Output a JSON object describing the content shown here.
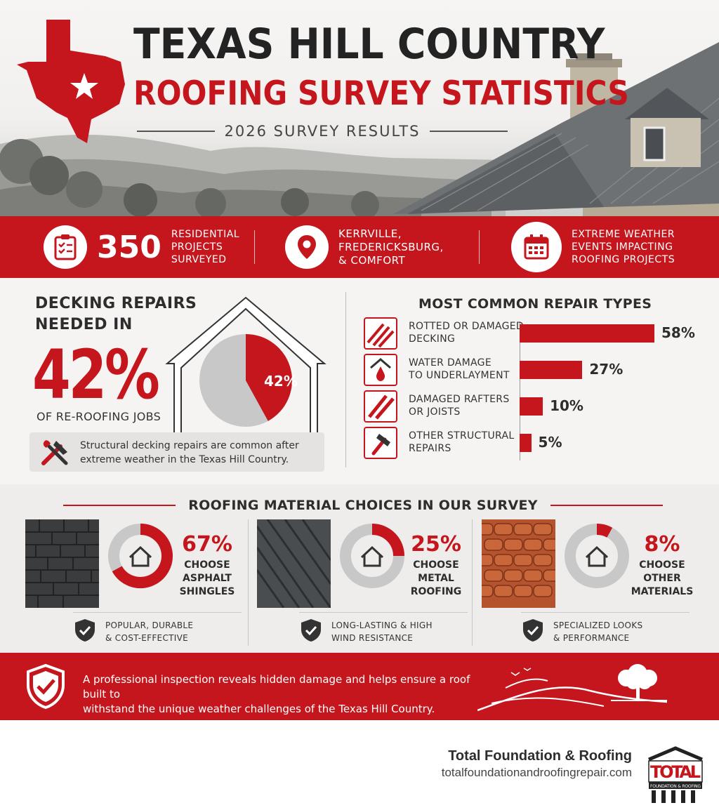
{
  "header": {
    "title_line1": "TEXAS HILL COUNTRY",
    "title_line2": "ROOFING SURVEY STATISTICS",
    "subtitle": "2026 SURVEY RESULTS"
  },
  "stats_bar": {
    "projects_count": "350",
    "projects_label_1": "RESIDENTIAL",
    "projects_label_2": "PROJECTS",
    "projects_label_3": "SURVEYED",
    "locations_1": "KERRVILLE,",
    "locations_2": "FREDERICKSBURG,",
    "locations_3": "& COMFORT",
    "weather_1": "EXTREME WEATHER",
    "weather_2": "EVENTS IMPACTING",
    "weather_3": "ROOFING PROJECTS"
  },
  "decking": {
    "heading_1": "DECKING REPAIRS",
    "heading_2": "NEEDED IN",
    "percent_big": "42%",
    "sub": "OF RE-ROOFING JOBS",
    "pie_label": "42%",
    "pie_value": 42,
    "note_1": "Structural decking repairs are common after",
    "note_2": "extreme weather in the Texas Hill Country."
  },
  "repairs": {
    "heading": "MOST COMMON REPAIR TYPES",
    "items": [
      {
        "label_1": "ROTTED OR DAMAGED",
        "label_2": "DECKING",
        "value": 58,
        "pct": "58%",
        "icon": "decking-icon"
      },
      {
        "label_1": "WATER DAMAGE",
        "label_2": "TO UNDERLAYMENT",
        "value": 27,
        "pct": "27%",
        "icon": "water-drop-icon"
      },
      {
        "label_1": "DAMAGED RAFTERS",
        "label_2": "OR JOISTS",
        "value": 10,
        "pct": "10%",
        "icon": "rafters-icon"
      },
      {
        "label_1": "OTHER STRUCTURAL",
        "label_2": "REPAIRS",
        "value": 5,
        "pct": "5%",
        "icon": "hammer-icon"
      }
    ]
  },
  "materials": {
    "heading": "ROOFING MATERIAL CHOICES IN OUR SURVEY",
    "items": [
      {
        "pct": "67%",
        "value": 67,
        "l1": "CHOOSE",
        "l2": "ASPHALT",
        "l3": "SHINGLES",
        "f1": "POPULAR, DURABLE",
        "f2": "& COST-EFFECTIVE"
      },
      {
        "pct": "25%",
        "value": 25,
        "l1": "CHOOSE",
        "l2": "METAL",
        "l3": "ROOFING",
        "f1": "LONG-LASTING & HIGH",
        "f2": "WIND RESISTANCE"
      },
      {
        "pct": "8%",
        "value": 8,
        "l1": "CHOOSE",
        "l2": "OTHER",
        "l3": "MATERIALS",
        "f1": "SPECIALIZED LOOKS",
        "f2": "& PERFORMANCE"
      }
    ]
  },
  "cta": {
    "text_1": "A professional inspection reveals hidden damage and helps ensure a roof built to",
    "text_2": "withstand the unique weather challenges of the Texas Hill Country."
  },
  "footer": {
    "brand_name": "Total Foundation & Roofing",
    "url": "totalfoundationandroofingrepair.com",
    "logo_text": "TOTAL",
    "logo_sub": "FOUNDATION & ROOFING"
  },
  "colors": {
    "accent": "#c4161c",
    "dark": "#2d2d2d",
    "grey": "#c8c8c8"
  }
}
